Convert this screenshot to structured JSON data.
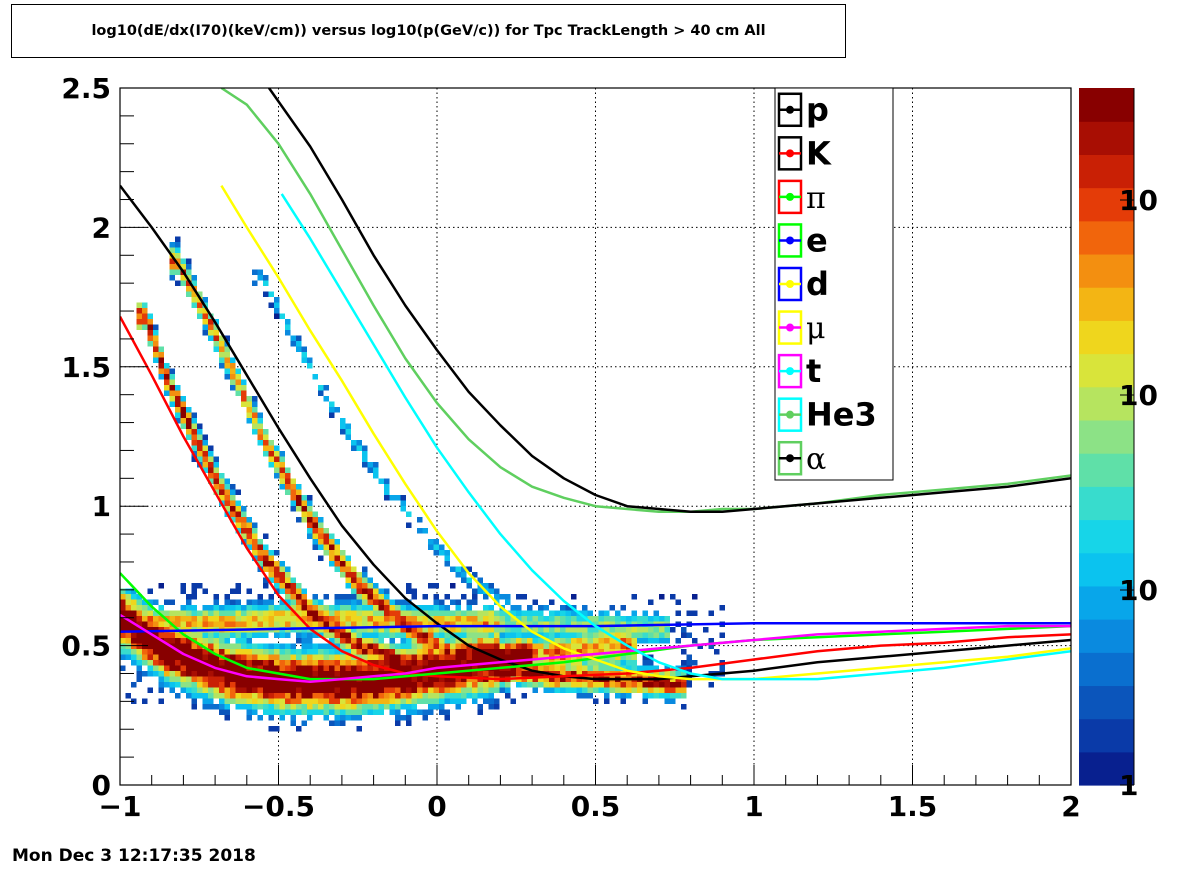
{
  "title": "log10(dE/dx(I70)(keV/cm)) versus log10(p(GeV/c)) for Tpc TrackLength > 40 cm All",
  "footer": {
    "date": "Mon Dec  3 12:17:35 2018"
  },
  "chart_data": {
    "type": "heatmap",
    "title": "log10(dE/dx(I70)(keV/cm)) versus log10(p(GeV/c)) for Tpc TrackLength > 40 cm All",
    "xlabel": "",
    "ylabel": "",
    "xlim": [
      -1,
      2
    ],
    "ylim": [
      0,
      2.5
    ],
    "x_ticks": [
      "-1",
      "-0.5",
      "0",
      "0.5",
      "1",
      "1.5",
      "2"
    ],
    "y_ticks": [
      "0",
      "0.5",
      "1",
      "1.5",
      "2",
      "2.5"
    ],
    "grid": true,
    "z_scale": "log",
    "colorbar_labels": [
      "1",
      "10",
      "10",
      "10"
    ],
    "legend_position": "top-right",
    "bands": [
      {
        "species": "p",
        "points": [
          [
            -0.82,
            1.88
          ],
          [
            -0.7,
            1.62
          ],
          [
            -0.55,
            1.25
          ],
          [
            -0.4,
            0.95
          ],
          [
            -0.25,
            0.72
          ],
          [
            -0.1,
            0.57
          ],
          [
            0.05,
            0.46
          ],
          [
            0.2,
            0.42
          ],
          [
            0.35,
            0.39
          ],
          [
            0.55,
            0.38
          ],
          [
            0.75,
            0.36
          ]
        ],
        "width": 0.05
      },
      {
        "species": "K",
        "points": [
          [
            -0.92,
            1.68
          ],
          [
            -0.85,
            1.45
          ],
          [
            -0.7,
            1.1
          ],
          [
            -0.55,
            0.82
          ],
          [
            -0.4,
            0.62
          ],
          [
            -0.25,
            0.5
          ],
          [
            -0.1,
            0.44
          ],
          [
            0.05,
            0.41
          ],
          [
            0.2,
            0.4
          ]
        ],
        "width": 0.05
      },
      {
        "species": "pi",
        "points": [
          [
            -1.0,
            0.6
          ],
          [
            -0.85,
            0.48
          ],
          [
            -0.65,
            0.4
          ],
          [
            -0.45,
            0.37
          ],
          [
            -0.25,
            0.37
          ],
          [
            -0.05,
            0.4
          ],
          [
            0.15,
            0.44
          ],
          [
            0.35,
            0.47
          ],
          [
            0.6,
            0.5
          ]
        ],
        "width": 0.08
      },
      {
        "species": "e",
        "points": [
          [
            -1.0,
            0.58
          ],
          [
            -0.7,
            0.58
          ],
          [
            -0.4,
            0.6
          ],
          [
            -0.1,
            0.58
          ],
          [
            0.2,
            0.58
          ],
          [
            0.5,
            0.57
          ],
          [
            0.7,
            0.56
          ]
        ],
        "width": 0.06
      },
      {
        "species": "d",
        "points": [
          [
            -0.55,
            1.82
          ],
          [
            -0.45,
            1.6
          ],
          [
            -0.3,
            1.3
          ],
          [
            -0.15,
            1.05
          ],
          [
            0.0,
            0.85
          ],
          [
            0.1,
            0.74
          ],
          [
            0.2,
            0.66
          ]
        ],
        "width": 0.03
      }
    ],
    "series": [
      {
        "name": "p",
        "color": "#000000",
        "x": [
          -1.0,
          -0.9,
          -0.8,
          -0.7,
          -0.6,
          -0.5,
          -0.4,
          -0.3,
          -0.2,
          -0.1,
          0.0,
          0.1,
          0.2,
          0.3,
          0.4,
          0.5,
          0.6,
          0.7,
          0.8,
          0.9,
          1.0,
          1.2,
          1.4,
          1.6,
          1.8,
          2.0
        ],
        "y": [
          2.15,
          2.0,
          1.84,
          1.66,
          1.47,
          1.28,
          1.1,
          0.93,
          0.79,
          0.67,
          0.58,
          0.5,
          0.45,
          0.41,
          0.39,
          0.38,
          0.38,
          0.38,
          0.39,
          0.4,
          0.41,
          0.44,
          0.46,
          0.48,
          0.5,
          0.52
        ]
      },
      {
        "name": "K",
        "color": "#ff0000",
        "x": [
          -1.0,
          -0.9,
          -0.8,
          -0.7,
          -0.6,
          -0.5,
          -0.4,
          -0.3,
          -0.2,
          -0.1,
          0.0,
          0.2,
          0.4,
          0.6,
          0.8,
          1.0,
          1.2,
          1.4,
          1.6,
          1.8,
          2.0
        ],
        "y": [
          1.68,
          1.47,
          1.25,
          1.05,
          0.85,
          0.68,
          0.56,
          0.48,
          0.43,
          0.4,
          0.39,
          0.38,
          0.39,
          0.4,
          0.42,
          0.45,
          0.48,
          0.5,
          0.51,
          0.53,
          0.54
        ]
      },
      {
        "name": "π",
        "color": "#00ff00",
        "x": [
          -1.0,
          -0.9,
          -0.8,
          -0.7,
          -0.6,
          -0.5,
          -0.4,
          -0.3,
          -0.2,
          -0.1,
          0.0,
          0.2,
          0.4,
          0.6,
          0.8,
          1.0,
          1.2,
          1.4,
          1.6,
          1.8,
          2.0
        ],
        "y": [
          0.76,
          0.64,
          0.54,
          0.47,
          0.42,
          0.4,
          0.38,
          0.38,
          0.38,
          0.39,
          0.4,
          0.42,
          0.44,
          0.47,
          0.5,
          0.52,
          0.53,
          0.54,
          0.55,
          0.56,
          0.57
        ]
      },
      {
        "name": "e",
        "color": "#0000ff",
        "x": [
          -1.0,
          -0.5,
          0.0,
          0.5,
          1.0,
          1.5,
          2.0
        ],
        "y": [
          0.55,
          0.56,
          0.57,
          0.57,
          0.58,
          0.58,
          0.58
        ]
      },
      {
        "name": "d",
        "color": "#ffff00",
        "x": [
          -0.68,
          -0.6,
          -0.5,
          -0.4,
          -0.3,
          -0.2,
          -0.1,
          0.0,
          0.1,
          0.2,
          0.3,
          0.4,
          0.5,
          0.6,
          0.7,
          0.8,
          0.9,
          1.0,
          1.2,
          1.4,
          1.6,
          1.8,
          2.0
        ],
        "y": [
          2.15,
          2.0,
          1.82,
          1.63,
          1.45,
          1.26,
          1.08,
          0.91,
          0.76,
          0.64,
          0.55,
          0.49,
          0.45,
          0.41,
          0.39,
          0.38,
          0.38,
          0.38,
          0.4,
          0.42,
          0.44,
          0.46,
          0.49
        ]
      },
      {
        "name": "μ",
        "color": "#ff00ff",
        "x": [
          -1.0,
          -0.9,
          -0.8,
          -0.7,
          -0.6,
          -0.5,
          -0.4,
          -0.3,
          -0.2,
          -0.1,
          0.0,
          0.2,
          0.4,
          0.6,
          0.8,
          1.0,
          1.2,
          1.4,
          1.6,
          1.8,
          2.0
        ],
        "y": [
          0.61,
          0.54,
          0.47,
          0.42,
          0.39,
          0.38,
          0.37,
          0.38,
          0.39,
          0.4,
          0.42,
          0.44,
          0.46,
          0.48,
          0.5,
          0.52,
          0.54,
          0.55,
          0.56,
          0.57,
          0.57
        ]
      },
      {
        "name": "t",
        "color": "#00ffff",
        "x": [
          -0.49,
          -0.4,
          -0.3,
          -0.2,
          -0.1,
          0.0,
          0.1,
          0.2,
          0.3,
          0.4,
          0.5,
          0.6,
          0.7,
          0.8,
          0.9,
          1.0,
          1.2,
          1.4,
          1.6,
          1.8,
          2.0
        ],
        "y": [
          2.12,
          1.96,
          1.77,
          1.58,
          1.39,
          1.21,
          1.05,
          0.9,
          0.77,
          0.66,
          0.57,
          0.5,
          0.44,
          0.4,
          0.38,
          0.38,
          0.38,
          0.4,
          0.42,
          0.45,
          0.48
        ]
      },
      {
        "name": "He3",
        "color": "#5fcf5f",
        "x": [
          -0.68,
          -0.6,
          -0.5,
          -0.4,
          -0.3,
          -0.2,
          -0.1,
          0.0,
          0.1,
          0.2,
          0.3,
          0.4,
          0.5,
          0.6,
          0.7,
          0.8,
          0.9,
          1.0,
          1.2,
          1.4,
          1.6,
          1.8,
          2.0
        ],
        "y": [
          2.5,
          2.44,
          2.3,
          2.12,
          1.92,
          1.72,
          1.53,
          1.37,
          1.24,
          1.14,
          1.07,
          1.03,
          1.0,
          0.99,
          0.98,
          0.98,
          0.99,
          0.99,
          1.01,
          1.04,
          1.06,
          1.08,
          1.11
        ]
      },
      {
        "name": "α",
        "color": "#000000",
        "x": [
          -0.53,
          -0.4,
          -0.3,
          -0.2,
          -0.1,
          0.0,
          0.1,
          0.2,
          0.3,
          0.4,
          0.5,
          0.6,
          0.7,
          0.8,
          0.9,
          1.0,
          1.2,
          1.4,
          1.6,
          1.8,
          2.0
        ],
        "y": [
          2.5,
          2.29,
          2.1,
          1.9,
          1.72,
          1.56,
          1.41,
          1.29,
          1.18,
          1.1,
          1.04,
          1.0,
          0.99,
          0.98,
          0.98,
          0.99,
          1.01,
          1.03,
          1.05,
          1.07,
          1.1
        ]
      }
    ],
    "legend": [
      {
        "label": "p",
        "marker_color": "#000000",
        "box_color": "#000000",
        "greek": false
      },
      {
        "label": "K",
        "marker_color": "#ff0000",
        "box_color": "#000000",
        "greek": false
      },
      {
        "label": "π",
        "marker_color": "#00ff00",
        "box_color": "#ff0000",
        "greek": true
      },
      {
        "label": "e",
        "marker_color": "#0000ff",
        "box_color": "#00ff00",
        "greek": false
      },
      {
        "label": "d",
        "marker_color": "#ffff00",
        "box_color": "#0000ff",
        "greek": false
      },
      {
        "label": "μ",
        "marker_color": "#ff00ff",
        "box_color": "#ffff00",
        "greek": true
      },
      {
        "label": "t",
        "marker_color": "#00ffff",
        "box_color": "#ff00ff",
        "greek": false
      },
      {
        "label": "He3",
        "marker_color": "#5fcf5f",
        "box_color": "#00ffff",
        "greek": false
      },
      {
        "label": "α",
        "marker_color": "#000000",
        "box_color": "#5fcf5f",
        "greek": true
      }
    ],
    "palette": [
      "#08208f",
      "#0a3aa8",
      "#0b55bb",
      "#0a6fcf",
      "#0a8adf",
      "#08a6ea",
      "#0bc3ef",
      "#17d5e8",
      "#38dccd",
      "#5fe0a8",
      "#8ce286",
      "#b6e45f",
      "#d9e43a",
      "#efd61d",
      "#f3b514",
      "#f38f10",
      "#f1650c",
      "#e43c08",
      "#c92005",
      "#a80e03",
      "#880000"
    ]
  }
}
